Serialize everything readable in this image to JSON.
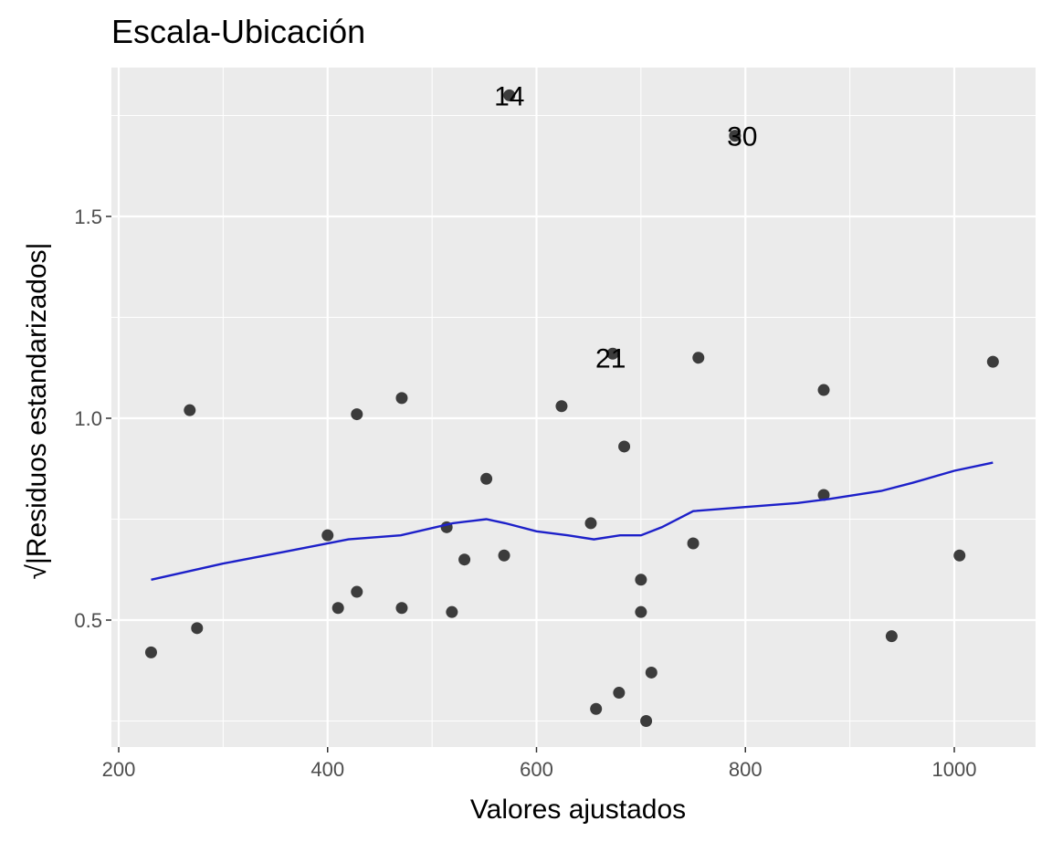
{
  "chart_data": {
    "type": "scatter",
    "title": "Escala-Ubicación",
    "xlabel": "Valores ajustados",
    "ylabel": "√|Residuos estandarizados|",
    "xlim": [
      190,
      1040
    ],
    "ylim": [
      0.22,
      1.85
    ],
    "x_ticks": [
      200,
      400,
      600,
      800,
      1000
    ],
    "y_ticks": [
      0.5,
      1.0,
      1.5
    ],
    "x_tick_labels": [
      "200",
      "400",
      "600",
      "800",
      "1000"
    ],
    "y_tick_labels": [
      "0.5",
      "1.0",
      "1.5"
    ],
    "grid": true,
    "points": [
      {
        "x": 231,
        "y": 0.42
      },
      {
        "x": 268,
        "y": 1.02
      },
      {
        "x": 275,
        "y": 0.48
      },
      {
        "x": 400,
        "y": 0.71
      },
      {
        "x": 410,
        "y": 0.53
      },
      {
        "x": 428,
        "y": 1.01
      },
      {
        "x": 428,
        "y": 0.57
      },
      {
        "x": 471,
        "y": 1.05
      },
      {
        "x": 471,
        "y": 0.53
      },
      {
        "x": 514,
        "y": 0.73
      },
      {
        "x": 519,
        "y": 0.52
      },
      {
        "x": 531,
        "y": 0.65
      },
      {
        "x": 552,
        "y": 0.85
      },
      {
        "x": 569,
        "y": 0.66
      },
      {
        "x": 574,
        "y": 1.8
      },
      {
        "x": 624,
        "y": 1.03
      },
      {
        "x": 652,
        "y": 0.74
      },
      {
        "x": 657,
        "y": 0.28
      },
      {
        "x": 673,
        "y": 1.16
      },
      {
        "x": 679,
        "y": 0.32
      },
      {
        "x": 684,
        "y": 0.93
      },
      {
        "x": 700,
        "y": 0.6
      },
      {
        "x": 700,
        "y": 0.52
      },
      {
        "x": 705,
        "y": 0.25
      },
      {
        "x": 710,
        "y": 0.37
      },
      {
        "x": 750,
        "y": 0.69
      },
      {
        "x": 755,
        "y": 1.15
      },
      {
        "x": 790,
        "y": 1.7
      },
      {
        "x": 875,
        "y": 1.07
      },
      {
        "x": 875,
        "y": 0.81
      },
      {
        "x": 940,
        "y": 0.46
      },
      {
        "x": 1005,
        "y": 0.66
      },
      {
        "x": 1037,
        "y": 1.14
      }
    ],
    "point_labels": [
      {
        "text": "14",
        "x": 574,
        "y": 1.8
      },
      {
        "text": "30",
        "x": 797,
        "y": 1.7
      },
      {
        "text": "21",
        "x": 671,
        "y": 1.15
      }
    ],
    "smooth_line": {
      "color": "#1d20c9",
      "x": [
        231,
        300,
        360,
        420,
        470,
        520,
        552,
        570,
        600,
        630,
        655,
        680,
        700,
        720,
        750,
        800,
        850,
        880,
        930,
        960,
        1000,
        1037
      ],
      "y": [
        0.6,
        0.64,
        0.67,
        0.7,
        0.71,
        0.74,
        0.75,
        0.74,
        0.72,
        0.71,
        0.7,
        0.71,
        0.71,
        0.73,
        0.77,
        0.78,
        0.79,
        0.8,
        0.82,
        0.84,
        0.87,
        0.89
      ]
    },
    "colors": {
      "panel_bg": "#ebebeb",
      "grid": "#ffffff",
      "point": "#333333",
      "line": "#1d20c9"
    }
  }
}
